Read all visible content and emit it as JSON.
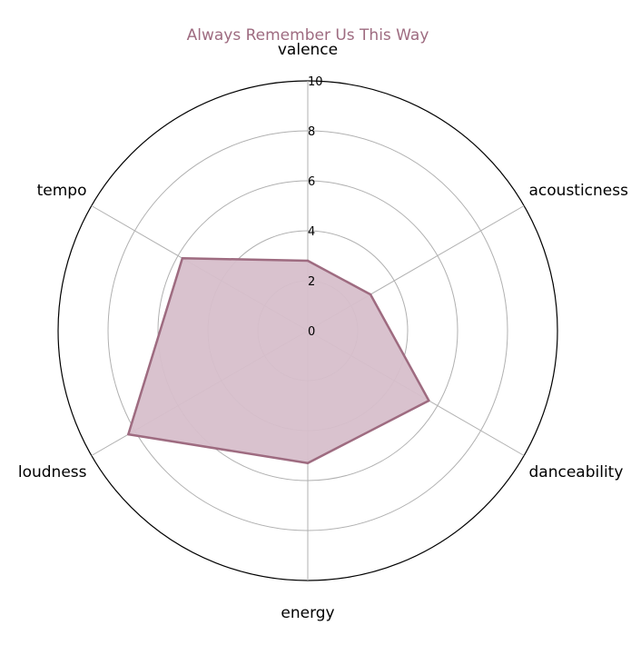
{
  "chart_data": {
    "type": "radar",
    "title": "Always Remember Us This Way",
    "categories": [
      "valence",
      "acousticness",
      "danceability",
      "energy",
      "loudness",
      "tempo"
    ],
    "series": [
      {
        "values": [
          2.8,
          2.9,
          5.6,
          5.3,
          8.3,
          5.8
        ]
      }
    ],
    "rlim": [
      0,
      10
    ],
    "rticks": [
      0,
      2,
      4,
      6,
      8,
      10
    ],
    "rtick_labels": [
      "0",
      "2",
      "4",
      "6",
      "8",
      "10"
    ],
    "grid": true,
    "legend": "none"
  },
  "colors": {
    "title": "#9e6b80",
    "series_line": "#9e6b80",
    "series_fill": "#d7bfcb",
    "grid": "#b0b0b0",
    "outer_ring": "#000000"
  }
}
